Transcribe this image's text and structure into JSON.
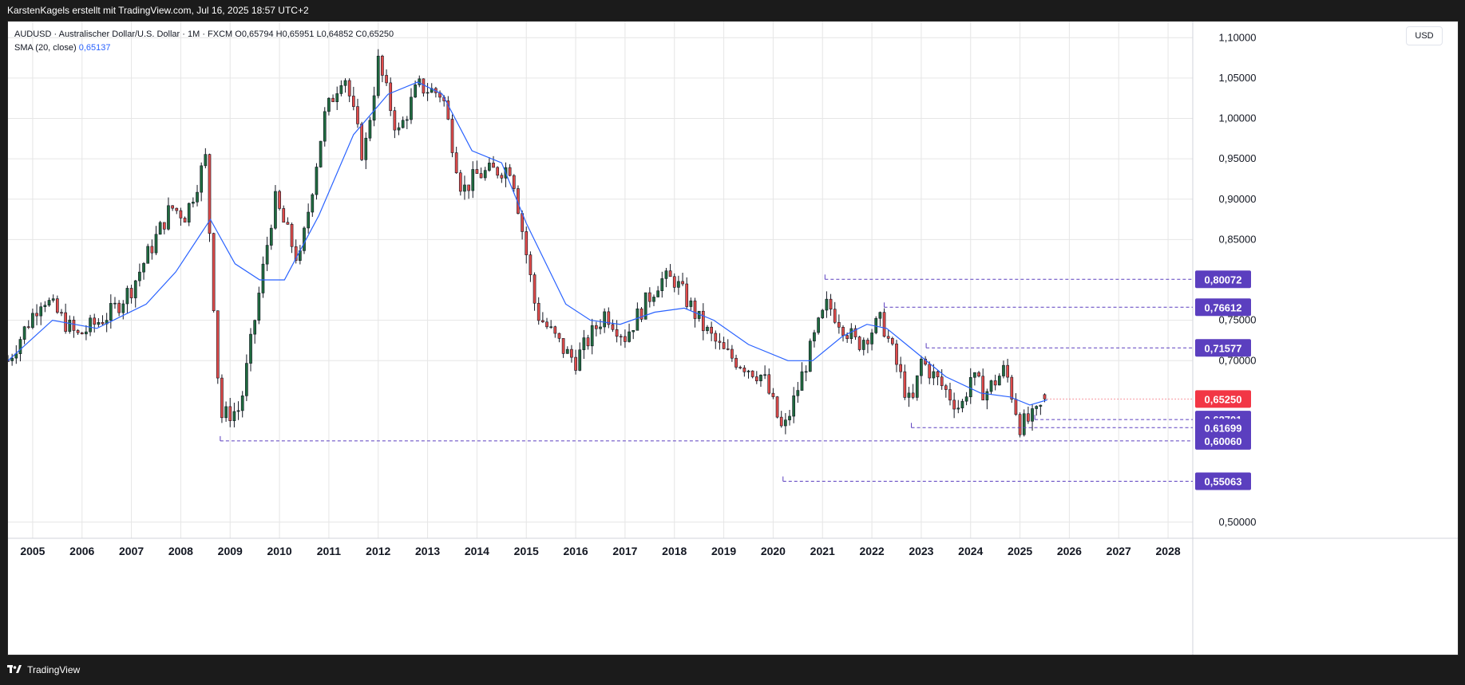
{
  "header": {
    "attribution": "KarstenKagels erstellt mit TradingView.com, Jul 16, 2025 18:57 UTC+2"
  },
  "legend": {
    "symbol_line": "AUDUSD · Australischer Dollar/U.S. Dollar · 1M · FXCM",
    "open": "O0,65794",
    "high": "H0,65951",
    "low": "L0,64852",
    "close": "C0,65250",
    "sma_label": "SMA (20, close)",
    "sma_value": "0,65137"
  },
  "price_axis": {
    "currency": "USD"
  },
  "footer": {
    "brand": "TradingView"
  },
  "colors": {
    "up": "#1f6b3f",
    "down": "#e04b4a",
    "sma": "#2962ff",
    "level": "#5b3fbf",
    "last_price": "#f23645",
    "grid": "#e6e6e6"
  },
  "chart_data": {
    "type": "candlestick",
    "title": "AUDUSD · Australischer Dollar/U.S. Dollar · 1M · FXCM",
    "interval": "1M",
    "x_labels": [
      "2005",
      "2006",
      "2007",
      "2008",
      "2009",
      "2010",
      "2011",
      "2012",
      "2013",
      "2014",
      "2015",
      "2016",
      "2017",
      "2018",
      "2019",
      "2020",
      "2021",
      "2022",
      "2023",
      "2024",
      "2025",
      "2026",
      "2027",
      "2028"
    ],
    "y_ticks": [
      "1,10000",
      "1,05000",
      "1,00000",
      "0,95000",
      "0,90000",
      "0,85000",
      "0,75000",
      "0,70000",
      "0,50000"
    ],
    "ylim": [
      0.48,
      1.12
    ],
    "x_range": [
      2004.5,
      2028.5
    ],
    "grid": true,
    "last_price": {
      "value": 0.6525,
      "label": "0,65250"
    },
    "ohlc_last_bar": {
      "open": 0.65794,
      "high": 0.65951,
      "low": 0.64852,
      "close": 0.6525
    },
    "sma": {
      "name": "SMA (20, close)",
      "period": 20,
      "last": 0.65137
    },
    "price_path": [
      [
        2004.5,
        0.7
      ],
      [
        2005.2,
        0.78
      ],
      [
        2005.9,
        0.73
      ],
      [
        2006.6,
        0.76
      ],
      [
        2007.0,
        0.79
      ],
      [
        2007.8,
        0.89
      ],
      [
        2008.1,
        0.88
      ],
      [
        2008.5,
        0.95
      ],
      [
        2008.8,
        0.63
      ],
      [
        2009.2,
        0.64
      ],
      [
        2009.9,
        0.9
      ],
      [
        2010.4,
        0.82
      ],
      [
        2010.9,
        1.0
      ],
      [
        2011.3,
        1.06
      ],
      [
        2011.7,
        0.95
      ],
      [
        2012.0,
        1.07
      ],
      [
        2012.4,
        0.98
      ],
      [
        2012.8,
        1.04
      ],
      [
        2013.3,
        1.03
      ],
      [
        2013.7,
        0.91
      ],
      [
        2014.0,
        0.93
      ],
      [
        2014.7,
        0.94
      ],
      [
        2015.2,
        0.76
      ],
      [
        2015.8,
        0.71
      ],
      [
        2016.0,
        0.7
      ],
      [
        2016.6,
        0.76
      ],
      [
        2017.0,
        0.73
      ],
      [
        2017.7,
        0.8
      ],
      [
        2018.0,
        0.8
      ],
      [
        2018.6,
        0.74
      ],
      [
        2019.0,
        0.71
      ],
      [
        2019.8,
        0.68
      ],
      [
        2020.2,
        0.61
      ],
      [
        2020.9,
        0.74
      ],
      [
        2021.1,
        0.77
      ],
      [
        2021.7,
        0.72
      ],
      [
        2022.2,
        0.75
      ],
      [
        2022.8,
        0.64
      ],
      [
        2023.0,
        0.7
      ],
      [
        2023.8,
        0.64
      ],
      [
        2024.0,
        0.68
      ],
      [
        2024.3,
        0.66
      ],
      [
        2024.7,
        0.69
      ],
      [
        2025.0,
        0.62
      ],
      [
        2025.3,
        0.63
      ],
      [
        2025.55,
        0.6525
      ]
    ],
    "sma_path": [
      [
        2004.5,
        0.7
      ],
      [
        2005.4,
        0.75
      ],
      [
        2006.3,
        0.74
      ],
      [
        2006.8,
        0.755
      ],
      [
        2007.3,
        0.77
      ],
      [
        2007.9,
        0.81
      ],
      [
        2008.6,
        0.875
      ],
      [
        2009.1,
        0.82
      ],
      [
        2009.6,
        0.8
      ],
      [
        2010.1,
        0.8
      ],
      [
        2010.8,
        0.88
      ],
      [
        2011.5,
        0.98
      ],
      [
        2012.2,
        1.03
      ],
      [
        2012.8,
        1.045
      ],
      [
        2013.3,
        1.03
      ],
      [
        2013.9,
        0.96
      ],
      [
        2014.5,
        0.945
      ],
      [
        2015.0,
        0.87
      ],
      [
        2015.8,
        0.77
      ],
      [
        2016.3,
        0.75
      ],
      [
        2016.9,
        0.745
      ],
      [
        2017.6,
        0.76
      ],
      [
        2018.2,
        0.765
      ],
      [
        2018.8,
        0.75
      ],
      [
        2019.5,
        0.72
      ],
      [
        2020.3,
        0.7
      ],
      [
        2020.8,
        0.7
      ],
      [
        2021.4,
        0.73
      ],
      [
        2021.9,
        0.745
      ],
      [
        2022.3,
        0.74
      ],
      [
        2022.9,
        0.71
      ],
      [
        2023.5,
        0.68
      ],
      [
        2024.2,
        0.66
      ],
      [
        2024.8,
        0.655
      ],
      [
        2025.2,
        0.645
      ],
      [
        2025.55,
        0.65137
      ]
    ],
    "horizontal_levels": [
      {
        "value": 0.80072,
        "label": "0,80072",
        "start_x": 2021.05
      },
      {
        "value": 0.76612,
        "label": "0,76612",
        "start_x": 2022.25
      },
      {
        "value": 0.71577,
        "label": "0,71577",
        "start_x": 2023.1
      },
      {
        "value": 0.62701,
        "label": "0,62701",
        "start_x": 2025.3
      },
      {
        "value": 0.61699,
        "label": "0,61699",
        "start_x": 2022.8
      },
      {
        "value": 0.6006,
        "label": "0,60060",
        "start_x": 2008.8
      },
      {
        "value": 0.55063,
        "label": "0,55063",
        "start_x": 2020.2
      }
    ]
  }
}
